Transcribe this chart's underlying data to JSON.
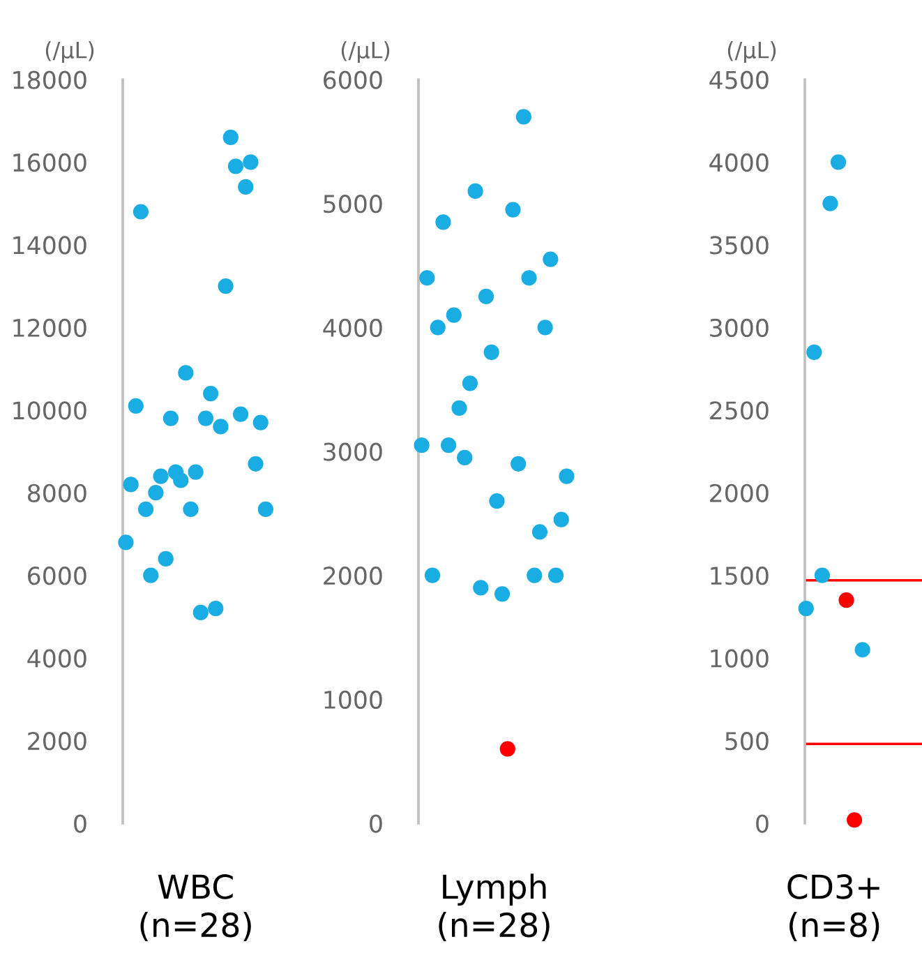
{
  "chart_data": [
    {
      "type": "scatter",
      "ylabel": "(/μL)",
      "ylim": [
        0,
        18000
      ],
      "yticks": [
        0,
        2000,
        4000,
        6000,
        8000,
        10000,
        12000,
        14000,
        16000,
        18000
      ],
      "grid": false,
      "categories": [
        "WBC\n(n=28)"
      ],
      "series": [
        {
          "x": [
            "WBC\n(n=28)",
            "WBC\n(n=28)",
            "WBC\n(n=28)",
            "WBC\n(n=28)",
            "WBC\n(n=28)",
            "WBC\n(n=28)",
            "WBC\n(n=28)",
            "WBC\n(n=28)",
            "WBC\n(n=28)",
            "WBC\n(n=28)",
            "WBC\n(n=28)",
            "WBC\n(n=28)",
            "WBC\n(n=28)",
            "WBC\n(n=28)",
            "WBC\n(n=28)",
            "WBC\n(n=28)",
            "WBC\n(n=28)",
            "WBC\n(n=28)",
            "WBC\n(n=28)",
            "WBC\n(n=28)",
            "WBC\n(n=28)",
            "WBC\n(n=28)",
            "WBC\n(n=28)",
            "WBC\n(n=28)",
            "WBC\n(n=28)",
            "WBC\n(n=28)",
            "WBC\n(n=28)",
            "WBC\n(n=28)",
            "WBC\n(n=28)"
          ],
          "values": [
            6800,
            8200,
            10100,
            14800,
            7600,
            6000,
            8000,
            8400,
            6400,
            9800,
            8500,
            8300,
            10900,
            7600,
            8500,
            5100,
            9800,
            10400,
            5200,
            9600,
            13000,
            16600,
            15900,
            9900,
            15400,
            16000,
            8700,
            9700,
            7600
          ],
          "colors": [
            "#1aade3",
            "#1aade3",
            "#1aade3",
            "#1aade3",
            "#1aade3",
            "#1aade3",
            "#1aade3",
            "#1aade3",
            "#1aade3",
            "#1aade3",
            "#1aade3",
            "#1aade3",
            "#1aade3",
            "#1aade3",
            "#1aade3",
            "#1aade3",
            "#1aade3",
            "#1aade3",
            "#1aade3",
            "#1aade3",
            "#1aade3",
            "#1aade3",
            "#1aade3",
            "#1aade3",
            "#1aade3",
            "#1aade3",
            "#1aade3",
            "#1aade3",
            "#1aade3"
          ]
        }
      ]
    },
    {
      "type": "scatter",
      "ylabel": "(/μL)",
      "ylim": [
        0,
        6000
      ],
      "yticks": [
        0,
        1000,
        2000,
        3000,
        4000,
        5000,
        6000
      ],
      "grid": false,
      "categories": [
        "Lymph\n(n=28)"
      ],
      "series": [
        {
          "x": [
            "Lymph\n(n=28)",
            "Lymph\n(n=28)",
            "Lymph\n(n=28)",
            "Lymph\n(n=28)",
            "Lymph\n(n=28)",
            "Lymph\n(n=28)",
            "Lymph\n(n=28)",
            "Lymph\n(n=28)",
            "Lymph\n(n=28)",
            "Lymph\n(n=28)",
            "Lymph\n(n=28)",
            "Lymph\n(n=28)",
            "Lymph\n(n=28)",
            "Lymph\n(n=28)",
            "Lymph\n(n=28)",
            "Lymph\n(n=28)",
            "Lymph\n(n=28)",
            "Lymph\n(n=28)",
            "Lymph\n(n=28)",
            "Lymph\n(n=28)",
            "Lymph\n(n=28)",
            "Lymph\n(n=28)",
            "Lymph\n(n=28)",
            "Lymph\n(n=28)",
            "Lymph\n(n=28)",
            "Lymph\n(n=28)",
            "Lymph\n(n=28)",
            "Lymph\n(n=28)"
          ],
          "values": [
            3050,
            4400,
            2000,
            4000,
            4850,
            3050,
            4100,
            3350,
            2950,
            3550,
            5100,
            1900,
            4250,
            3800,
            2600,
            1850,
            600,
            4950,
            2900,
            5700,
            4400,
            2000,
            2350,
            4000,
            4550,
            2000,
            2450,
            2800
          ],
          "colors": [
            "#1aade3",
            "#1aade3",
            "#1aade3",
            "#1aade3",
            "#1aade3",
            "#1aade3",
            "#1aade3",
            "#1aade3",
            "#1aade3",
            "#1aade3",
            "#1aade3",
            "#1aade3",
            "#1aade3",
            "#1aade3",
            "#1aade3",
            "#1aade3",
            "#ff0000",
            "#1aade3",
            "#1aade3",
            "#1aade3",
            "#1aade3",
            "#1aade3",
            "#1aade3",
            "#1aade3",
            "#1aade3",
            "#1aade3",
            "#1aade3",
            "#1aade3"
          ]
        }
      ]
    },
    {
      "type": "scatter",
      "ylabel": "(/μL)",
      "ylim": [
        0,
        4500
      ],
      "yticks": [
        0,
        500,
        1000,
        1500,
        2000,
        2500,
        3000,
        3500,
        4000,
        4500
      ],
      "grid": false,
      "categories": [
        "CD3+\n(n=8)"
      ],
      "series": [
        {
          "x": [
            "CD3+\n(n=8)",
            "CD3+\n(n=8)",
            "CD3+\n(n=8)",
            "CD3+\n(n=8)",
            "CD3+\n(n=8)",
            "CD3+\n(n=8)",
            "CD3+\n(n=8)",
            "CD3+\n(n=8)"
          ],
          "values": [
            1300,
            2850,
            1500,
            3750,
            4000,
            1350,
            20,
            1050
          ],
          "colors": [
            "#1aade3",
            "#1aade3",
            "#1aade3",
            "#1aade3",
            "#1aade3",
            "#ff0000",
            "#ff0000",
            "#1aade3"
          ]
        }
      ],
      "ref_lines": [
        {
          "axis": "y",
          "value": 1470,
          "color": "#ff0000"
        },
        {
          "axis": "y",
          "value": 480,
          "color": "#ff0000"
        }
      ]
    }
  ]
}
